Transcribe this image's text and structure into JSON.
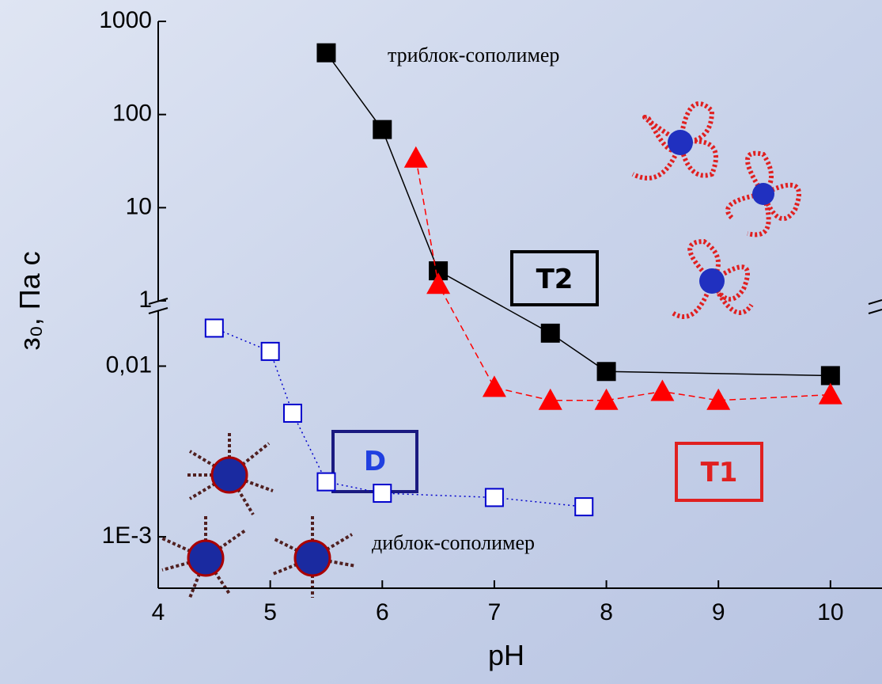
{
  "chart_data": {
    "type": "line",
    "xlabel": "pH",
    "ylabel": "з₀, Па с",
    "xlim": [
      4,
      10.46
    ],
    "xticks": [
      4,
      5,
      6,
      7,
      8,
      9,
      10
    ],
    "log_y": true,
    "ylim": [
      0.0005,
      1000
    ],
    "ybreak": [
      0.021,
      1
    ],
    "yticks": [
      1000,
      100,
      10,
      1,
      {
        "value": 0.01,
        "label": "0,01"
      },
      {
        "value": 0.001,
        "label": "1E-3"
      }
    ],
    "series": [
      {
        "name": "T2",
        "color": "#000000",
        "marker": "square-filled",
        "dash": "solid",
        "x": [
          5.5,
          6,
          6.5,
          7.5,
          8,
          10
        ],
        "values": [
          460,
          69,
          2.1,
          0.0156,
          0.0093,
          0.0088
        ]
      },
      {
        "name": "T1",
        "color": "#ff0000",
        "marker": "triangle",
        "dash": "dashed",
        "x": [
          6.3,
          6.5,
          7,
          7.5,
          8,
          8.5,
          9,
          10
        ],
        "values": [
          34,
          1.5,
          0.0075,
          0.0063,
          0.0063,
          0.0071,
          0.0063,
          0.0068
        ]
      },
      {
        "name": "D",
        "color": "#0000cc",
        "marker": "square-open",
        "dash": "dotted",
        "x": [
          4.5,
          5,
          5.2,
          5.5,
          6,
          7,
          7.8
        ],
        "values": [
          0.0167,
          0.0122,
          0.0053,
          0.0021,
          0.0018,
          0.0017,
          0.0015
        ]
      }
    ],
    "annotations": [
      "триблок-сополимер",
      "диблок-сополимер"
    ]
  }
}
